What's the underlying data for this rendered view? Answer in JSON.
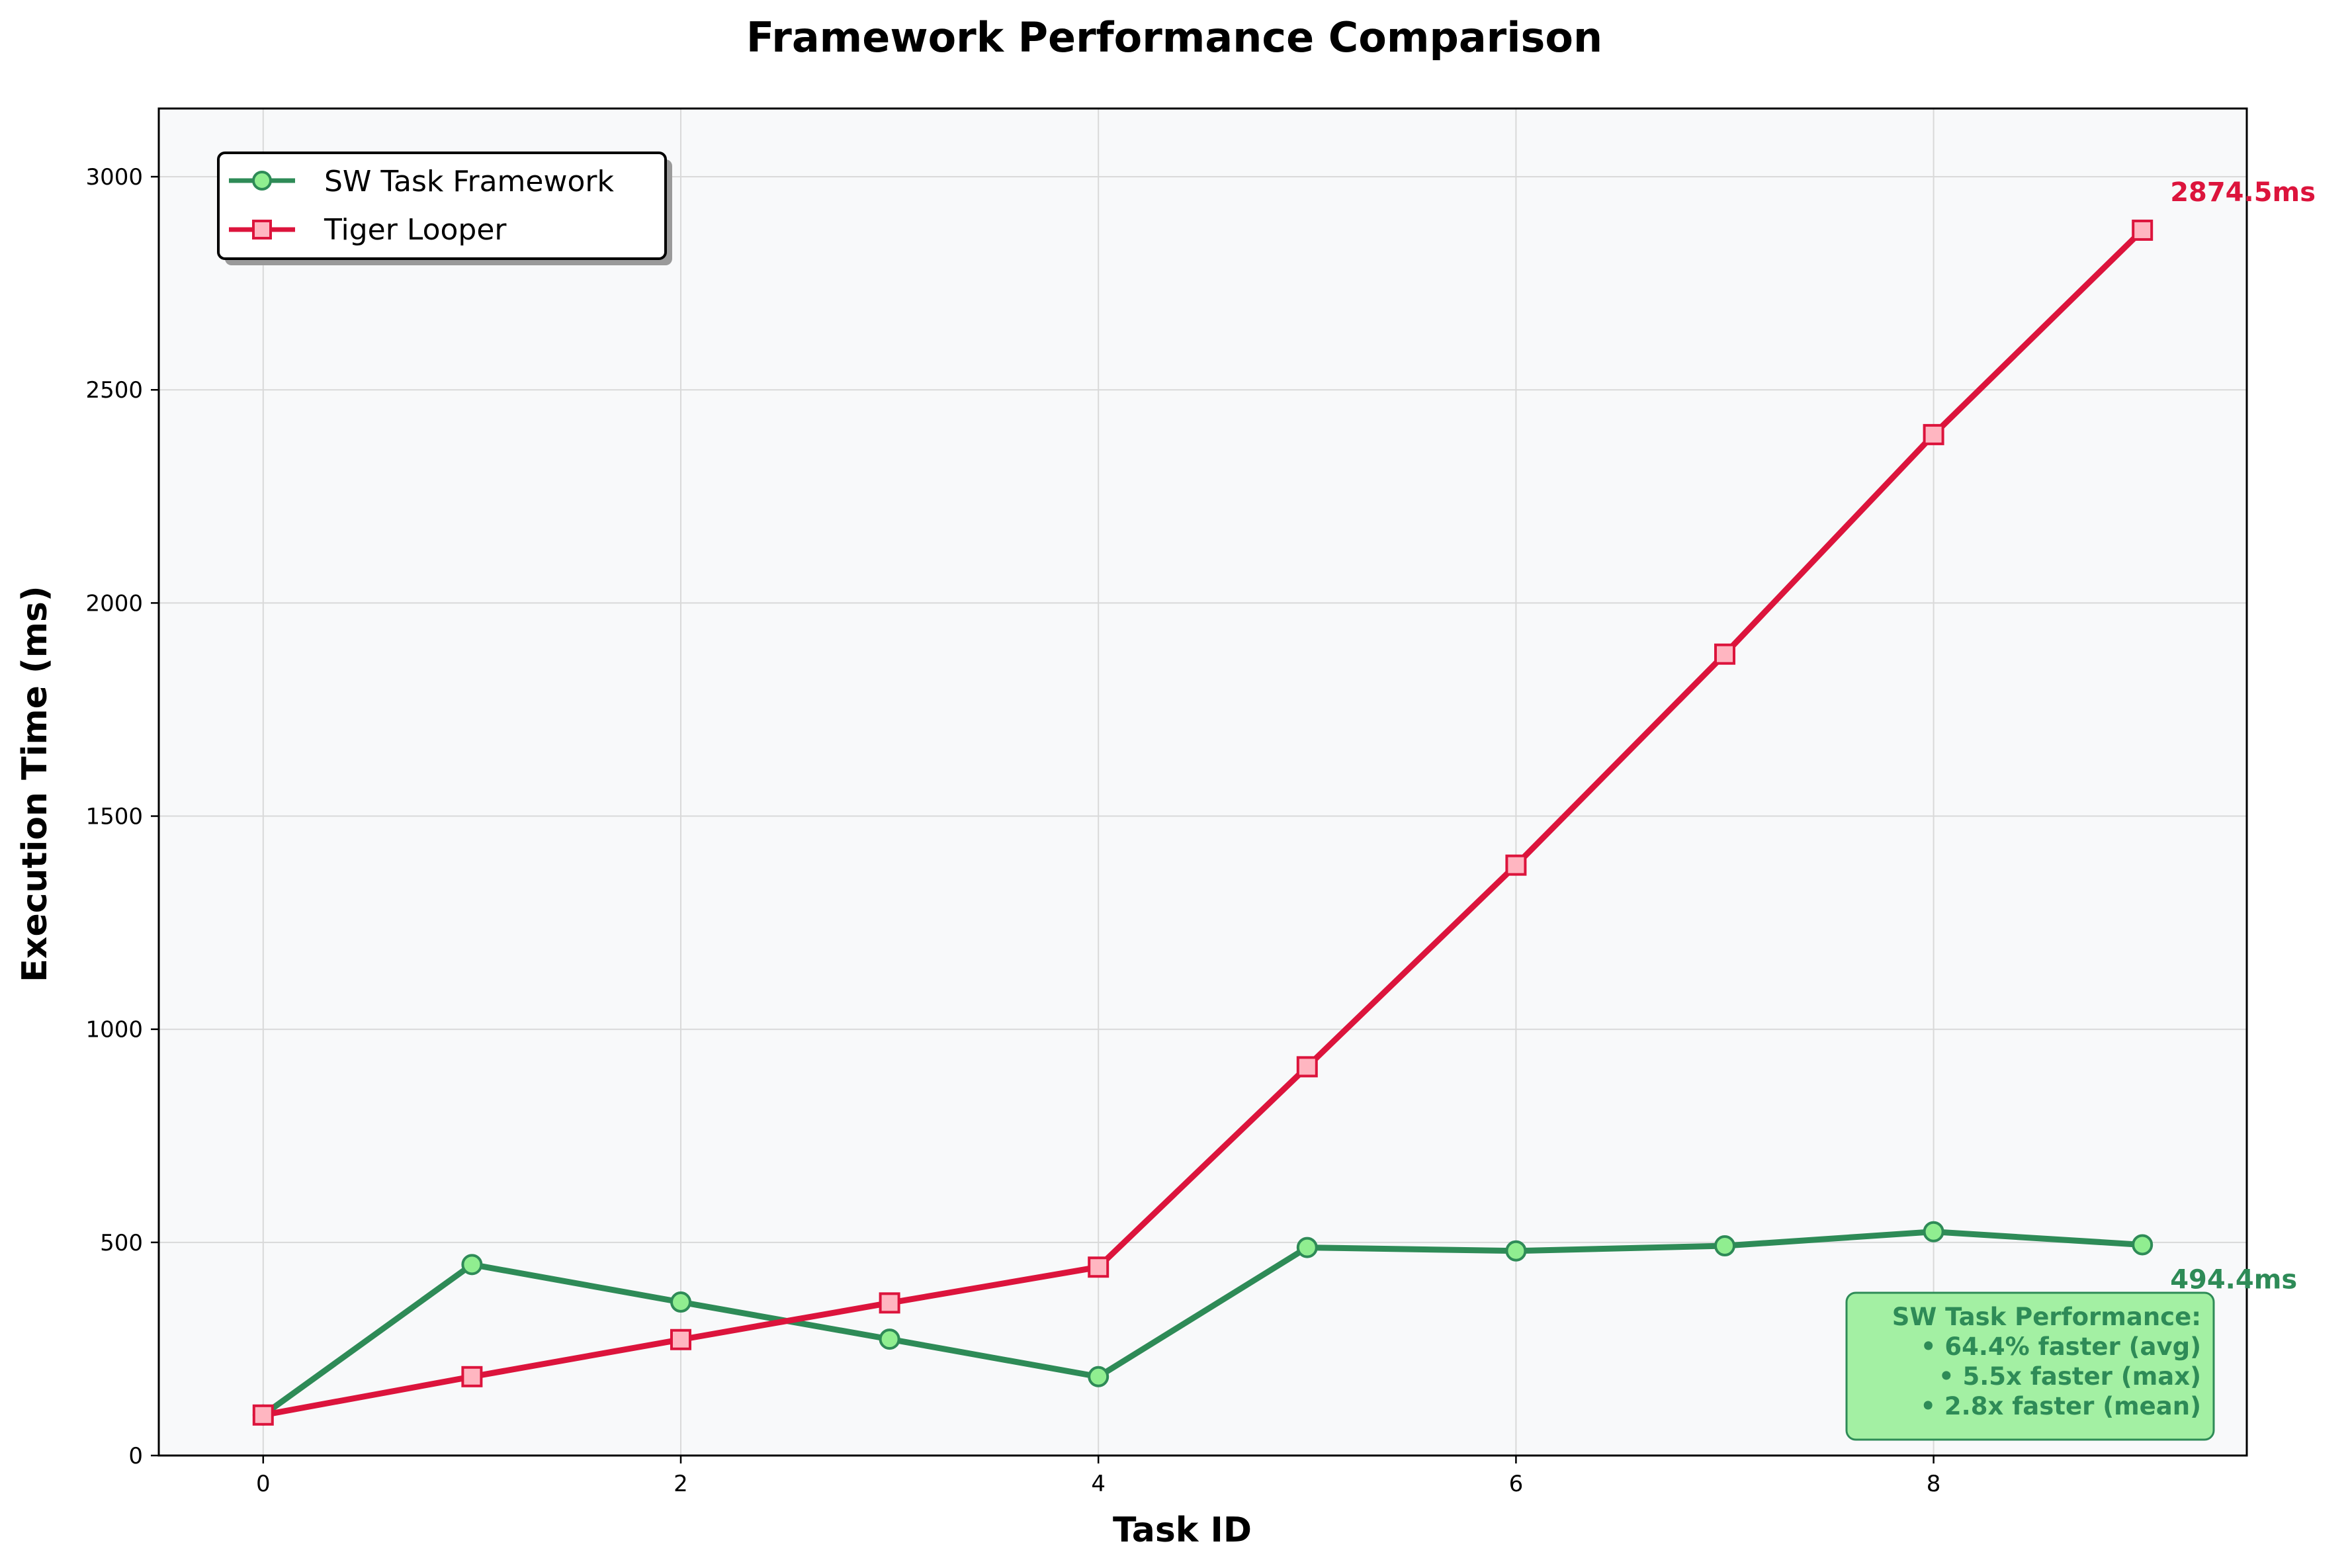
{
  "chart_data": {
    "type": "line",
    "title": "Framework Performance Comparison",
    "xlabel": "Task ID",
    "ylabel": "Execution Time (ms)",
    "x": [
      0,
      1,
      2,
      3,
      4,
      5,
      6,
      7,
      8,
      9
    ],
    "xlim": [
      -0.5,
      9.5
    ],
    "ylim": [
      0,
      3160
    ],
    "xticks": [
      0,
      2,
      4,
      6,
      8
    ],
    "yticks": [
      0,
      500,
      1000,
      1500,
      2000,
      2500,
      3000
    ],
    "grid": true,
    "legend_position": "upper-left",
    "series": [
      {
        "name": "SW Task Framework",
        "color": "#2e8b57",
        "marker_fill": "#90ee90",
        "marker": "circle",
        "values": [
          95,
          448,
          360,
          273,
          185,
          488,
          480,
          492,
          525,
          494.4
        ],
        "end_label": "494.4ms"
      },
      {
        "name": "Tiger Looper",
        "color": "#dc143c",
        "marker_fill": "#ffb6c1",
        "marker": "square",
        "values": [
          95,
          185,
          272,
          358,
          442,
          912,
          1385,
          1880,
          2395,
          2874.5
        ],
        "end_label": "2874.5ms"
      }
    ],
    "annotation": {
      "title": "SW Task Performance:",
      "lines": [
        "• 64.4% faster (avg)",
        "• 5.5x faster (max)",
        "• 2.8x faster (mean)"
      ],
      "position": "lower-right",
      "background": "#a3f0a3",
      "border": "#2e8b57",
      "text_color": "#2e8b57"
    }
  }
}
